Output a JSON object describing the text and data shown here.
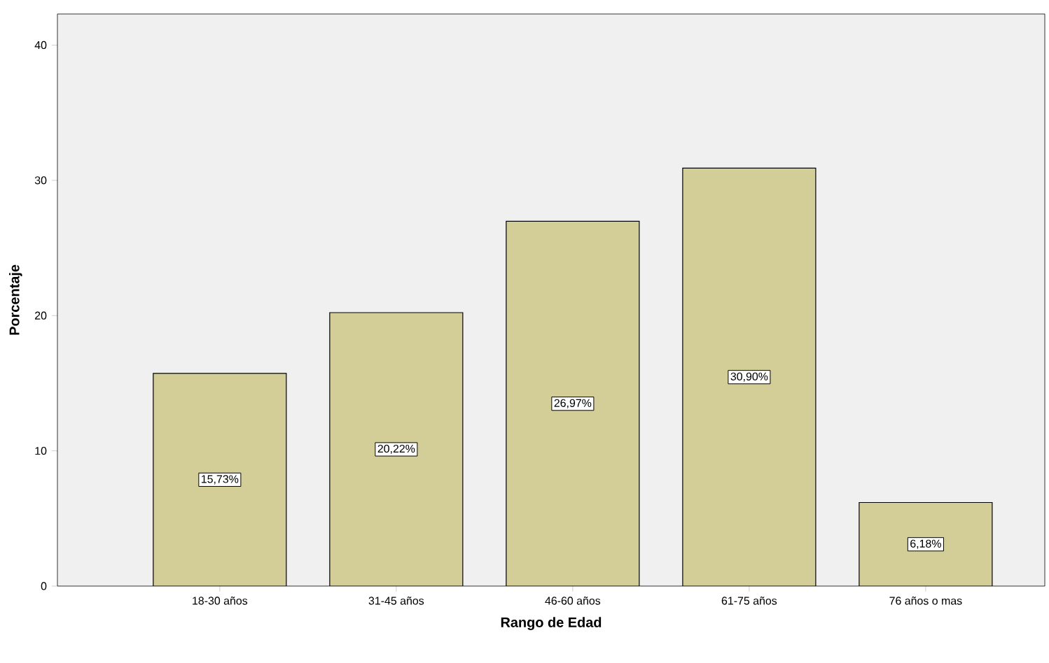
{
  "chart_data": {
    "type": "bar",
    "xlabel": "Rango de Edad",
    "ylabel": "Porcentaje",
    "categories": [
      "18-30 años",
      "31-45 años",
      "46-60 años",
      "61-75 años",
      "76 años o mas"
    ],
    "values": [
      15.73,
      20.22,
      26.97,
      30.9,
      6.18
    ],
    "value_labels": [
      "15,73%",
      "20,22%",
      "26,97%",
      "30,90%",
      "6,18%"
    ],
    "color": "#d3ce97",
    "ylim": [
      0,
      42.3
    ],
    "yticks": [
      0,
      10,
      20,
      30,
      40
    ]
  }
}
